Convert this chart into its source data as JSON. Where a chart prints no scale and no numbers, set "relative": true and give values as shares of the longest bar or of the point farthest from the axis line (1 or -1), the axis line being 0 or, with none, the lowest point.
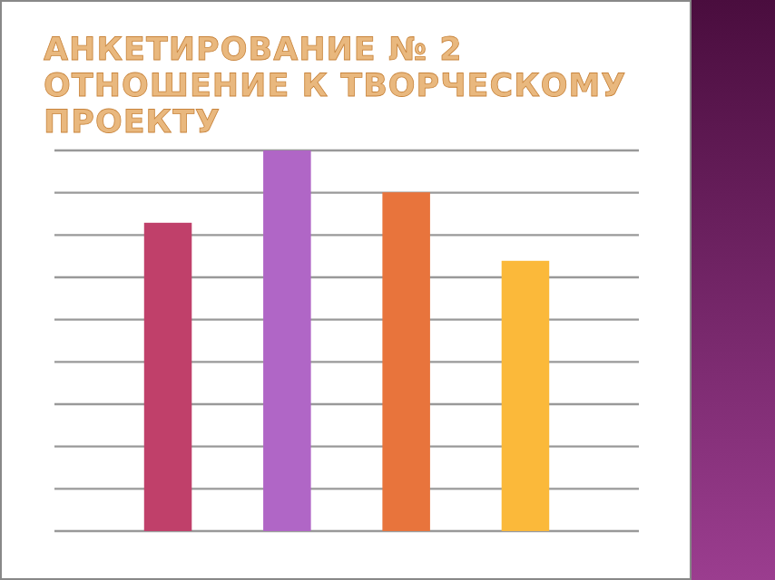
{
  "chart_data": {
    "type": "bar",
    "title": "АНКЕТИРОВАНИЕ № 2 ОТНОШЕНИЕ К ТВОРЧЕСКОМУ ПРОЕКТУ",
    "categories": [
      null,
      null,
      null,
      null
    ],
    "values": [
      0.81,
      1,
      0.89,
      0.71
    ],
    "colors": [
      "#c0406a",
      "#b066c6",
      "#e8743c",
      "#fbb93a"
    ],
    "relative": true,
    "grid": "y"
  }
}
